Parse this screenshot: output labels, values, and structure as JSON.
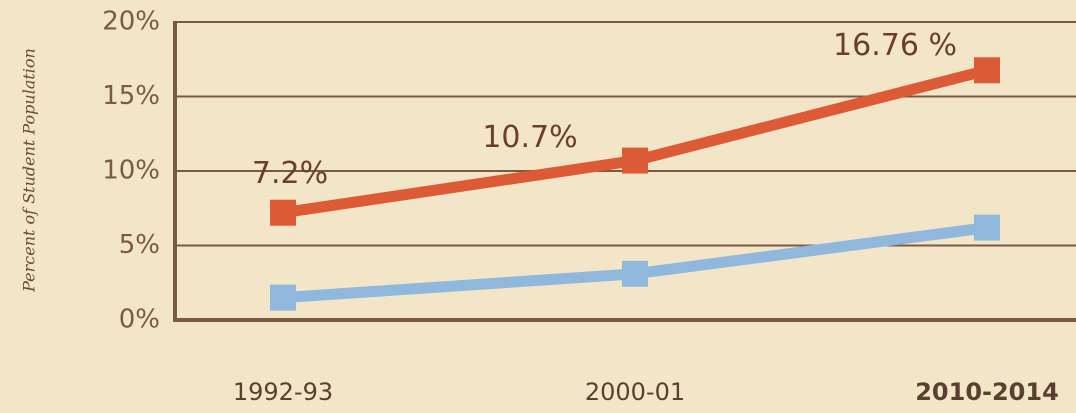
{
  "chart_data": {
    "type": "line",
    "y_label": "Percent of Student Population",
    "categories": [
      "1992-93",
      "2000-01",
      "2010-2014"
    ],
    "series": [
      {
        "color": "#dc5a35",
        "values": [
          7.2,
          10.7,
          16.76
        ],
        "value_labels": [
          "7.2%",
          "10.7%",
          "16.76 %"
        ]
      },
      {
        "color": "#8fb8dc",
        "values": [
          1.5,
          3.1,
          6.2
        ]
      }
    ],
    "ylim": [
      0,
      20
    ],
    "yticks": [
      {
        "value": 0,
        "label": "0%"
      },
      {
        "value": 5,
        "label": "5%"
      },
      {
        "value": 10,
        "label": "10%"
      },
      {
        "value": 15,
        "label": "15%"
      },
      {
        "value": 20,
        "label": "20%"
      }
    ],
    "grid": true
  }
}
